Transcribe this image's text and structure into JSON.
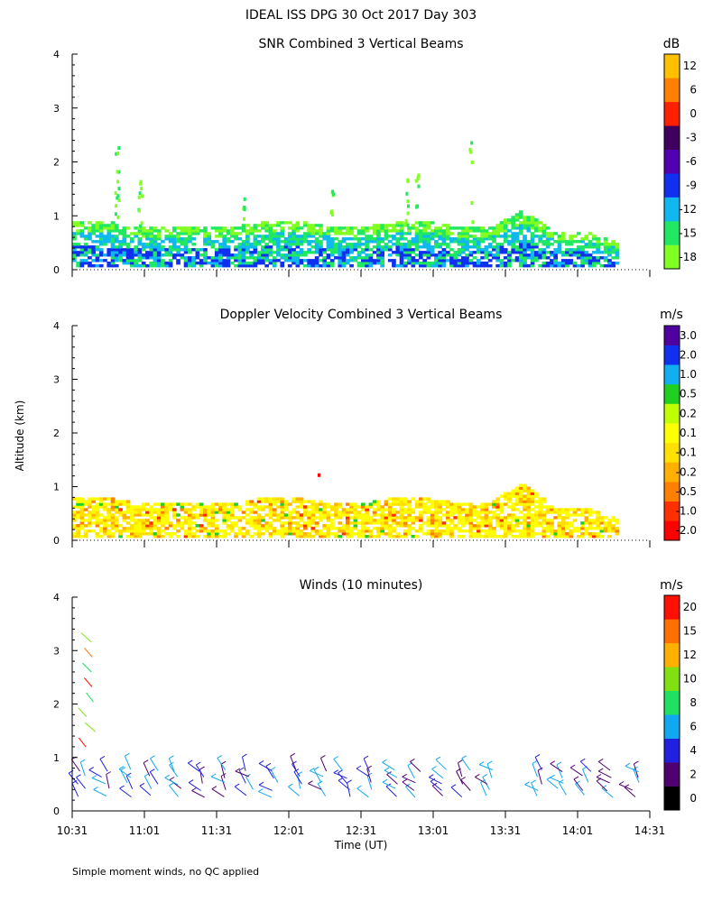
{
  "figure": {
    "title": "IDEAL ISS DPG  30 Oct 2017 Day 303",
    "ylabel": "Altitude (km)",
    "xlabel": "Time (UT)",
    "footnote": "Simple moment winds, no QC applied"
  },
  "x_ticks": [
    "10:31",
    "11:01",
    "11:31",
    "12:01",
    "12:31",
    "13:01",
    "13:31",
    "14:01",
    "14:31"
  ],
  "y_ticks": [
    "0",
    "1",
    "2",
    "3",
    "4"
  ],
  "colors": {
    "snr": [
      "#80ff20",
      "#20e860",
      "#10b8f0",
      "#1030f0",
      "#5000b0",
      "#400060",
      "#ff2000",
      "#ff8000",
      "#ffc000"
    ],
    "dop": [
      "#ff0000",
      "#ff3000",
      "#ff8000",
      "#ffb000",
      "#ffe000",
      "#ffff00",
      "#c0ff00",
      "#20d020",
      "#10b0f0",
      "#1030f0",
      "#5000a0",
      "#300030"
    ],
    "wind": [
      "#000000",
      "#500070",
      "#2020e0",
      "#10a8f0",
      "#20e060",
      "#80e010",
      "#ffb000",
      "#ff7000",
      "#ff1000"
    ]
  },
  "chart_data": [
    {
      "type": "heatmap",
      "name": "snr",
      "title": "SNR Combined 3 Vertical Beams",
      "xlim": [
        "10:31",
        "14:31"
      ],
      "ylim": [
        0,
        4
      ],
      "colorbar": {
        "unit": "dB",
        "labels": [
          "-18",
          "-15",
          "-12",
          "-9",
          "-6",
          "-3",
          "0",
          "6",
          "12"
        ]
      },
      "echo_layer_top_km": [
        0.9,
        0.9,
        0.8,
        0.8,
        0.8,
        0.8,
        0.9,
        0.9,
        0.8,
        0.8,
        0.9,
        0.9,
        0.8,
        0.8,
        1.1,
        0.7,
        0.7,
        0.5,
        0.5
      ]
    },
    {
      "type": "heatmap",
      "name": "doppler",
      "title": "Doppler Velocity Combined 3 Vertical Beams",
      "xlim": [
        "10:31",
        "14:31"
      ],
      "ylim": [
        0,
        4
      ],
      "colorbar": {
        "unit": "m/s",
        "labels": [
          "-2.0",
          "-1.0",
          "-0.5",
          "-0.2",
          "-0.1",
          "0.1",
          "0.2",
          "0.5",
          "1.0",
          "2.0",
          "3.0"
        ]
      },
      "echo_layer_top_km": [
        0.8,
        0.8,
        0.7,
        0.7,
        0.7,
        0.7,
        0.8,
        0.8,
        0.7,
        0.7,
        0.8,
        0.8,
        0.7,
        0.7,
        1.1,
        0.6,
        0.6,
        0.4,
        0.4
      ]
    },
    {
      "type": "scatter",
      "name": "winds",
      "title": "Winds (10 minutes)",
      "xlim": [
        "10:31",
        "14:31"
      ],
      "ylim": [
        0,
        4
      ],
      "colorbar": {
        "unit": "m/s",
        "labels": [
          "0",
          "2",
          "4",
          "6",
          "8",
          "10",
          "12",
          "15",
          "20"
        ]
      },
      "wind_profile_times": [
        "10:31",
        "10:41",
        "10:51",
        "11:01",
        "11:11",
        "11:21",
        "11:31",
        "11:41",
        "11:51",
        "12:01",
        "12:11",
        "12:21",
        "12:31",
        "12:41",
        "12:51",
        "13:01",
        "13:11",
        "13:21",
        "13:41",
        "13:51",
        "14:01",
        "14:11",
        "14:21"
      ]
    }
  ]
}
